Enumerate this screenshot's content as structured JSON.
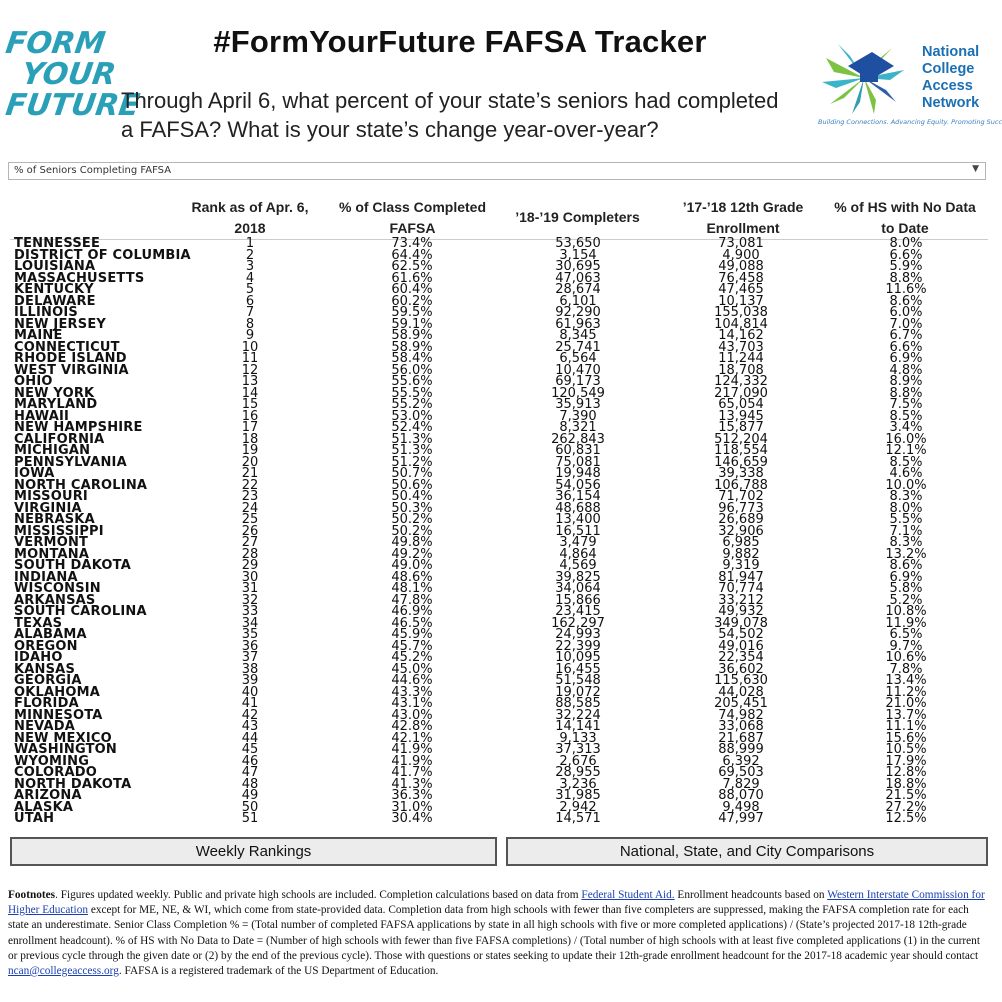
{
  "logo_left": {
    "lines": [
      "FORM",
      "YOUR",
      "FUTURE"
    ]
  },
  "title": "#FormYourFuture FAFSA Tracker",
  "subtitle_line1": "Through April 6, what percent of your state’s seniors had completed",
  "subtitle_line2": "a FAFSA? What is your state’s change year-over-year?",
  "logo_right": {
    "line1": "National",
    "line2": "College",
    "line3": "Access",
    "line4": "Network",
    "tagline": "Building Connections. Advancing Equity. Promoting Success.",
    "colors": [
      "#1b6fb3",
      "#7dc242",
      "#3bb3c8",
      "#2f5fa8"
    ]
  },
  "dropdown": {
    "value": "% of Seniors Completing FAFSA"
  },
  "headers": {
    "rank_line1": "Rank as of Apr. 6,",
    "rank_line2": "2018",
    "pct_line1": "% of Class Completed",
    "pct_line2": "FAFSA",
    "completers": "’18-’19 Completers",
    "enroll_line1": "’17-’18 12th Grade",
    "enroll_line2": "Enrollment",
    "nodata_line1": "% of HS with No Data",
    "nodata_line2": "to Date"
  },
  "rows": [
    [
      "TENNESSEE",
      "1",
      "73.4%",
      "53,650",
      "73,081",
      "8.0%"
    ],
    [
      "DISTRICT OF COLUMBIA",
      "2",
      "64.4%",
      "3,154",
      "4,900",
      "6.6%"
    ],
    [
      "LOUISIANA",
      "3",
      "62.5%",
      "30,695",
      "49,088",
      "5.9%"
    ],
    [
      "MASSACHUSETTS",
      "4",
      "61.6%",
      "47,063",
      "76,458",
      "8.8%"
    ],
    [
      "KENTUCKY",
      "5",
      "60.4%",
      "28,674",
      "47,465",
      "11.6%"
    ],
    [
      "DELAWARE",
      "6",
      "60.2%",
      "6,101",
      "10,137",
      "8.6%"
    ],
    [
      "ILLINOIS",
      "7",
      "59.5%",
      "92,290",
      "155,038",
      "6.0%"
    ],
    [
      "NEW JERSEY",
      "8",
      "59.1%",
      "61,963",
      "104,814",
      "7.0%"
    ],
    [
      "MAINE",
      "9",
      "58.9%",
      "8,345",
      "14,162",
      "6.7%"
    ],
    [
      "CONNECTICUT",
      "10",
      "58.9%",
      "25,741",
      "43,703",
      "6.6%"
    ],
    [
      "RHODE ISLAND",
      "11",
      "58.4%",
      "6,564",
      "11,244",
      "6.9%"
    ],
    [
      "WEST VIRGINIA",
      "12",
      "56.0%",
      "10,470",
      "18,708",
      "4.8%"
    ],
    [
      "OHIO",
      "13",
      "55.6%",
      "69,173",
      "124,332",
      "8.9%"
    ],
    [
      "NEW YORK",
      "14",
      "55.5%",
      "120,549",
      "217,090",
      "8.8%"
    ],
    [
      "MARYLAND",
      "15",
      "55.2%",
      "35,913",
      "65,054",
      "7.5%"
    ],
    [
      "HAWAII",
      "16",
      "53.0%",
      "7,390",
      "13,945",
      "8.5%"
    ],
    [
      "NEW HAMPSHIRE",
      "17",
      "52.4%",
      "8,321",
      "15,877",
      "3.4%"
    ],
    [
      "CALIFORNIA",
      "18",
      "51.3%",
      "262,843",
      "512,204",
      "16.0%"
    ],
    [
      "MICHIGAN",
      "19",
      "51.3%",
      "60,831",
      "118,554",
      "12.1%"
    ],
    [
      "PENNSYLVANIA",
      "20",
      "51.2%",
      "75,081",
      "146,659",
      "8.5%"
    ],
    [
      "IOWA",
      "21",
      "50.7%",
      "19,948",
      "39,338",
      "4.6%"
    ],
    [
      "NORTH CAROLINA",
      "22",
      "50.6%",
      "54,056",
      "106,788",
      "10.0%"
    ],
    [
      "MISSOURI",
      "23",
      "50.4%",
      "36,154",
      "71,702",
      "8.3%"
    ],
    [
      "VIRGINIA",
      "24",
      "50.3%",
      "48,688",
      "96,773",
      "8.0%"
    ],
    [
      "NEBRASKA",
      "25",
      "50.2%",
      "13,400",
      "26,689",
      "5.5%"
    ],
    [
      "MISSISSIPPI",
      "26",
      "50.2%",
      "16,511",
      "32,906",
      "7.1%"
    ],
    [
      "VERMONT",
      "27",
      "49.8%",
      "3,479",
      "6,985",
      "8.3%"
    ],
    [
      "MONTANA",
      "28",
      "49.2%",
      "4,864",
      "9,882",
      "13.2%"
    ],
    [
      "SOUTH DAKOTA",
      "29",
      "49.0%",
      "4,569",
      "9,319",
      "8.6%"
    ],
    [
      "INDIANA",
      "30",
      "48.6%",
      "39,825",
      "81,947",
      "6.9%"
    ],
    [
      "WISCONSIN",
      "31",
      "48.1%",
      "34,064",
      "70,774",
      "5.8%"
    ],
    [
      "ARKANSAS",
      "32",
      "47.8%",
      "15,866",
      "33,212",
      "5.2%"
    ],
    [
      "SOUTH CAROLINA",
      "33",
      "46.9%",
      "23,415",
      "49,932",
      "10.8%"
    ],
    [
      "TEXAS",
      "34",
      "46.5%",
      "162,297",
      "349,078",
      "11.9%"
    ],
    [
      "ALABAMA",
      "35",
      "45.9%",
      "24,993",
      "54,502",
      "6.5%"
    ],
    [
      "OREGON",
      "36",
      "45.7%",
      "22,399",
      "49,016",
      "9.7%"
    ],
    [
      "IDAHO",
      "37",
      "45.2%",
      "10,095",
      "22,354",
      "10.6%"
    ],
    [
      "KANSAS",
      "38",
      "45.0%",
      "16,455",
      "36,602",
      "7.8%"
    ],
    [
      "GEORGIA",
      "39",
      "44.6%",
      "51,548",
      "115,630",
      "13.4%"
    ],
    [
      "OKLAHOMA",
      "40",
      "43.3%",
      "19,072",
      "44,028",
      "11.2%"
    ],
    [
      "FLORIDA",
      "41",
      "43.1%",
      "88,585",
      "205,451",
      "21.0%"
    ],
    [
      "MINNESOTA",
      "42",
      "43.0%",
      "32,224",
      "74,982",
      "13.7%"
    ],
    [
      "NEVADA",
      "43",
      "42.8%",
      "14,141",
      "33,068",
      "11.1%"
    ],
    [
      "NEW MEXICO",
      "44",
      "42.1%",
      "9,133",
      "21,687",
      "15.6%"
    ],
    [
      "WASHINGTON",
      "45",
      "41.9%",
      "37,313",
      "88,999",
      "10.5%"
    ],
    [
      "WYOMING",
      "46",
      "41.9%",
      "2,676",
      "6,392",
      "17.9%"
    ],
    [
      "COLORADO",
      "47",
      "41.7%",
      "28,955",
      "69,503",
      "12.8%"
    ],
    [
      "NORTH DAKOTA",
      "48",
      "41.3%",
      "3,236",
      "7,829",
      "18.8%"
    ],
    [
      "ARIZONA",
      "49",
      "36.3%",
      "31,985",
      "88,070",
      "21.5%"
    ],
    [
      "ALASKA",
      "50",
      "31.0%",
      "2,942",
      "9,498",
      "27.2%"
    ],
    [
      "UTAH",
      "51",
      "30.4%",
      "14,571",
      "47,997",
      "12.5%"
    ]
  ],
  "buttons": {
    "weekly": "Weekly Rankings",
    "comparisons": "National, State, and City Comparisons"
  },
  "footnote": {
    "label": "Footnotes",
    "t1": ". Figures updated weekly. Public and private high schools are included. Completion calculations based on data from ",
    "link1": "Federal Student Aid.",
    "t2": " Enrollment headcounts based on ",
    "link2": "Western Interstate Commission for Higher Education",
    "t3": " except for ME, NE, & WI, which come from state-provided data. Completion data from high schools with fewer than five completers are suppressed, making the FAFSA completion rate for each state an underestimate. Senior Class Completion % = (Total number of completed FAFSA applications by state in all high schools with five or more completed applications) / (State’s projected 2017-18 12th-grade enrollment headcount). % of HS with No Data to Date = (Number of high schools with fewer than five FAFSA completions) / (Total number of high schools with at least five completed applications (1) in the current or previous cycle through the given date or (2) by the end of the previous cycle). Those with questions or states seeking to update their 12th-grade enrollment headcount for the 2017-18 academic year should contact ",
    "link3": "ncan@collegeaccess.org",
    "t4": ". FAFSA is a registered trademark of the US Department of Education."
  }
}
